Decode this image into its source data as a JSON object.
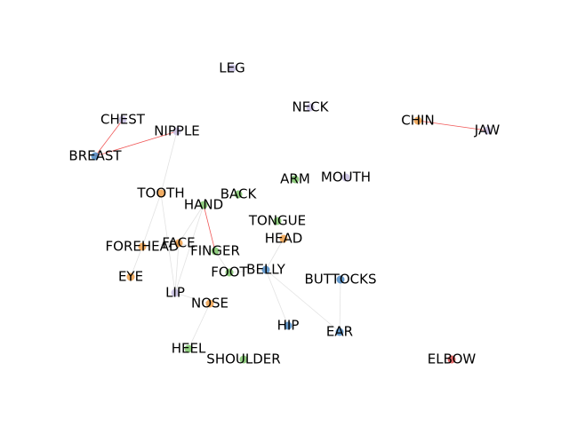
{
  "graph": {
    "colors": {
      "blue": "#4c8ac4",
      "orange": "#f0a04a",
      "green": "#7cc46a",
      "red": "#e05050",
      "lavender": "#c6bde0",
      "edge_red": "#ee4444",
      "edge_grey": "#d5d5d5"
    },
    "nodes": [
      {
        "id": "leg",
        "label": "LEG",
        "color": "lavender"
      },
      {
        "id": "neck",
        "label": "NECK",
        "color": "lavender"
      },
      {
        "id": "chest",
        "label": "CHEST",
        "color": "lavender"
      },
      {
        "id": "nipple",
        "label": "NIPPLE",
        "color": "lavender"
      },
      {
        "id": "chin",
        "label": "CHIN",
        "color": "orange"
      },
      {
        "id": "jaw",
        "label": "JAW",
        "color": "lavender"
      },
      {
        "id": "breast",
        "label": "BREAST",
        "color": "blue"
      },
      {
        "id": "arm",
        "label": "ARM",
        "color": "green"
      },
      {
        "id": "mouth",
        "label": "MOUTH",
        "color": "lavender"
      },
      {
        "id": "tooth",
        "label": "TOOTH",
        "color": "orange"
      },
      {
        "id": "back",
        "label": "BACK",
        "color": "green"
      },
      {
        "id": "hand",
        "label": "HAND",
        "color": "green"
      },
      {
        "id": "tongue",
        "label": "TONGUE",
        "color": "green"
      },
      {
        "id": "head",
        "label": "HEAD",
        "color": "orange"
      },
      {
        "id": "forehead",
        "label": "FOREHEAD",
        "color": "orange"
      },
      {
        "id": "face",
        "label": "FACE",
        "color": "orange"
      },
      {
        "id": "finger",
        "label": "FINGER",
        "color": "green"
      },
      {
        "id": "foot",
        "label": "FOOT",
        "color": "green"
      },
      {
        "id": "belly",
        "label": "BELLY",
        "color": "blue"
      },
      {
        "id": "buttocks",
        "label": "BUTTOCKS",
        "color": "blue"
      },
      {
        "id": "eye",
        "label": "EYE",
        "color": "orange"
      },
      {
        "id": "lip",
        "label": "LIP",
        "color": "lavender"
      },
      {
        "id": "nose",
        "label": "NOSE",
        "color": "orange"
      },
      {
        "id": "hip",
        "label": "HIP",
        "color": "blue"
      },
      {
        "id": "ear",
        "label": "EAR",
        "color": "blue"
      },
      {
        "id": "heel",
        "label": "HEEL",
        "color": "green"
      },
      {
        "id": "shoulder",
        "label": "SHOULDER",
        "color": "green"
      },
      {
        "id": "elbow",
        "label": "ELBOW",
        "color": "red"
      }
    ],
    "edges": [
      {
        "source": "chest",
        "target": "breast",
        "color": "edge_red"
      },
      {
        "source": "breast",
        "target": "nipple",
        "color": "edge_red"
      },
      {
        "source": "chin",
        "target": "jaw",
        "color": "edge_red"
      },
      {
        "source": "hand",
        "target": "finger",
        "color": "edge_red"
      },
      {
        "source": "nipple",
        "target": "tooth",
        "color": "edge_grey"
      },
      {
        "source": "tooth",
        "target": "forehead",
        "color": "edge_grey"
      },
      {
        "source": "tooth",
        "target": "lip",
        "color": "edge_grey"
      },
      {
        "source": "forehead",
        "target": "eye",
        "color": "edge_grey"
      },
      {
        "source": "forehead",
        "target": "face",
        "color": "edge_grey"
      },
      {
        "source": "face",
        "target": "finger",
        "color": "edge_grey"
      },
      {
        "source": "hand",
        "target": "face",
        "color": "edge_grey"
      },
      {
        "source": "hand",
        "target": "lip",
        "color": "edge_grey"
      },
      {
        "source": "face",
        "target": "lip",
        "color": "edge_grey"
      },
      {
        "source": "finger",
        "target": "foot",
        "color": "edge_grey"
      },
      {
        "source": "foot",
        "target": "belly",
        "color": "edge_grey"
      },
      {
        "source": "belly",
        "target": "head",
        "color": "edge_grey"
      },
      {
        "source": "belly",
        "target": "hip",
        "color": "edge_grey"
      },
      {
        "source": "belly",
        "target": "ear",
        "color": "edge_grey"
      },
      {
        "source": "buttocks",
        "target": "ear",
        "color": "edge_grey"
      },
      {
        "source": "lip",
        "target": "nose",
        "color": "edge_grey"
      },
      {
        "source": "nose",
        "target": "heel",
        "color": "edge_grey"
      }
    ]
  }
}
